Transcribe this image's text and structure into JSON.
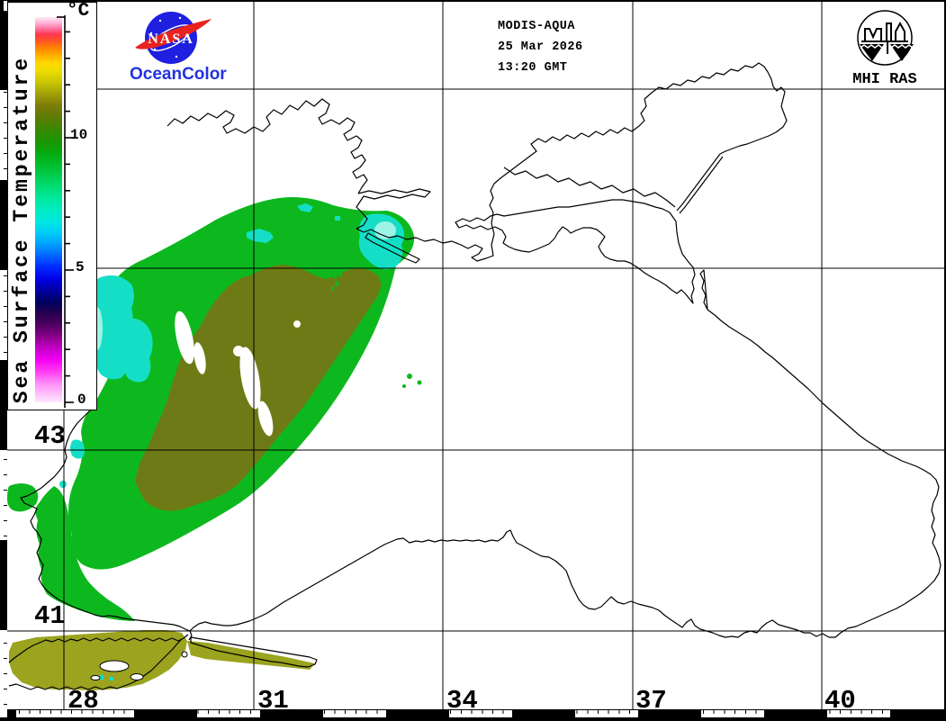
{
  "header": {
    "sensor": "MODIS-AQUA",
    "date": "25 Mar 2026",
    "time": "13:20 GMT"
  },
  "branding": {
    "nasa": "NASA",
    "product": "OceanColor",
    "institute": "MHI RAS"
  },
  "colorbar": {
    "title": "Sea Surface Temperature",
    "unit": "°C",
    "ticks": [
      {
        "label": "10"
      },
      {
        "label": "5"
      },
      {
        "label": "0"
      }
    ],
    "scale_min": 0,
    "scale_max": 15,
    "stops": [
      [
        0,
        "#ffe8ff"
      ],
      [
        2,
        "#ffc4fc"
      ],
      [
        5,
        "#ff8cf8"
      ],
      [
        8,
        "#ff3cf4"
      ],
      [
        11,
        "#f400f4"
      ],
      [
        14,
        "#c400c8"
      ],
      [
        17,
        "#8c008c"
      ],
      [
        20,
        "#500064"
      ],
      [
        23,
        "#28004c"
      ],
      [
        26,
        "#000060"
      ],
      [
        29,
        "#0000a0"
      ],
      [
        32,
        "#0000e4"
      ],
      [
        35,
        "#0028ff"
      ],
      [
        38,
        "#0064ff"
      ],
      [
        41,
        "#00a0ff"
      ],
      [
        44,
        "#00ccf8"
      ],
      [
        47,
        "#00e8e0"
      ],
      [
        50,
        "#00ecc0"
      ],
      [
        53,
        "#00e89c"
      ],
      [
        56,
        "#00dc74"
      ],
      [
        59,
        "#00cc4c"
      ],
      [
        62,
        "#00bc28"
      ],
      [
        65,
        "#06a810"
      ],
      [
        68,
        "#1c9400"
      ],
      [
        71,
        "#3c8800"
      ],
      [
        74,
        "#5c7c04"
      ],
      [
        77,
        "#7c7c08"
      ],
      [
        80,
        "#a0a008"
      ],
      [
        83,
        "#c8c404"
      ],
      [
        86,
        "#ecdc00"
      ],
      [
        88,
        "#ffd800"
      ],
      [
        90,
        "#ffb000"
      ],
      [
        92,
        "#ff8400"
      ],
      [
        94,
        "#ff5028"
      ],
      [
        95.5,
        "#ff3850"
      ],
      [
        97,
        "#ff70a0"
      ],
      [
        98.5,
        "#ffb4d8"
      ],
      [
        100,
        "#ffe8f4"
      ]
    ]
  },
  "grid": {
    "lon_labels": [
      {
        "text": "28"
      },
      {
        "text": "31"
      },
      {
        "text": "34"
      },
      {
        "text": "37"
      },
      {
        "text": "40"
      }
    ],
    "lat_labels": [
      {
        "text": "43"
      },
      {
        "text": "41"
      }
    ]
  },
  "colors": {
    "nasa-blue": "#1f1fe0",
    "nasa-red": "#e8231f",
    "oceancolor-text": "#2233dd",
    "sst-olive": "#6e7a15",
    "sst-green": "#0db81e",
    "sst-cyan": "#14dfc6",
    "sst-pale-cyan": "#9df4e6",
    "sst-marmara": "#9ba31f"
  }
}
